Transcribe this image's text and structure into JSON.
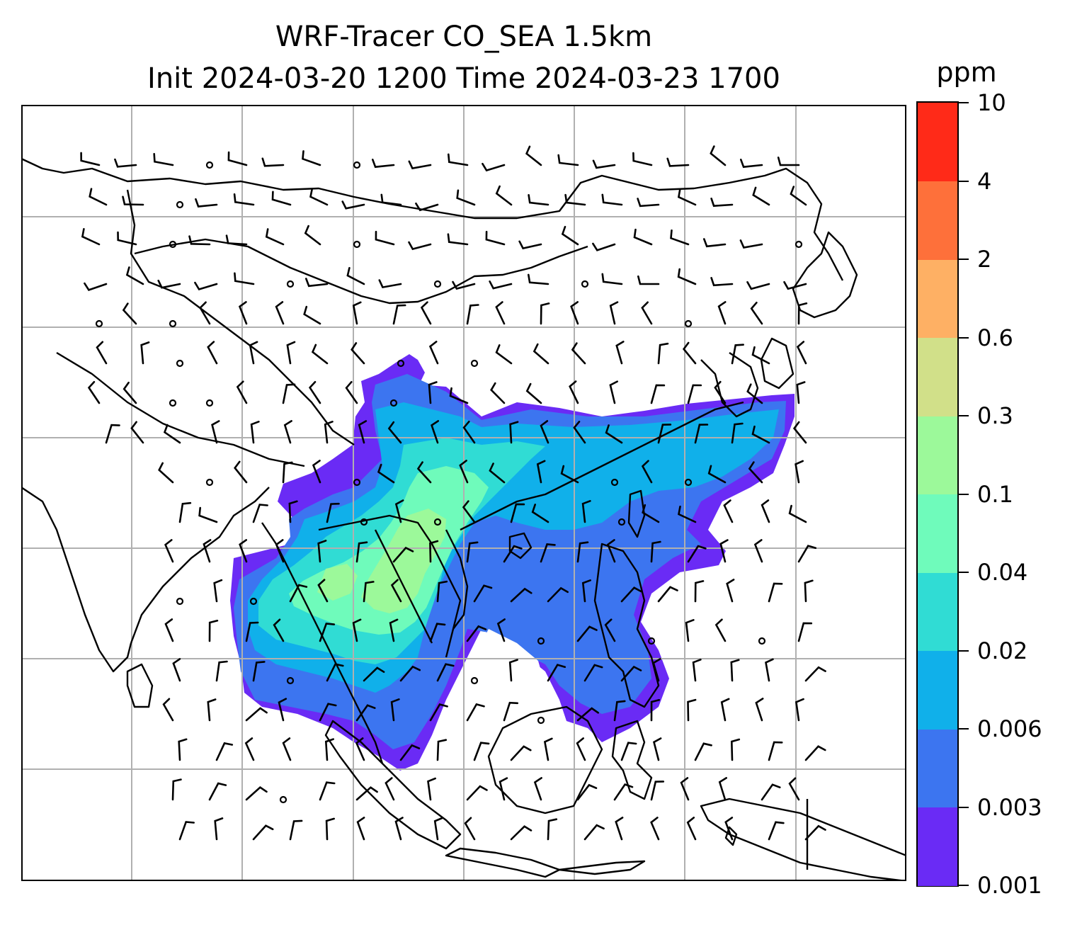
{
  "title": {
    "line1": "WRF-Tracer CO_SEA 1.5km",
    "line2": "Init 2024-03-20 1200 Time 2024-03-23 1700"
  },
  "colorbar": {
    "unit": "ppm",
    "levels": [
      "0.001",
      "0.003",
      "0.006",
      "0.02",
      "0.04",
      "0.1",
      "0.3",
      "0.6",
      "2",
      "4",
      "10"
    ],
    "colors": [
      "#6a2bf5",
      "#3c75f0",
      "#10b0ea",
      "#30dcd4",
      "#6ffbbb",
      "#9cf99a",
      "#d1e089",
      "#feb064",
      "#fe703a",
      "#ff2a18"
    ]
  },
  "map": {
    "gridlines": true,
    "gridline_color": "#b0b0b0",
    "coastline_color": "#000000"
  }
}
